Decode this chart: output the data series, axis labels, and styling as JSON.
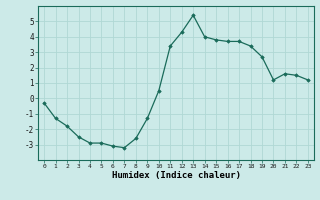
{
  "x": [
    0,
    1,
    2,
    3,
    4,
    5,
    6,
    7,
    8,
    9,
    10,
    11,
    12,
    13,
    14,
    15,
    16,
    17,
    18,
    19,
    20,
    21,
    22,
    23
  ],
  "y": [
    -0.3,
    -1.3,
    -1.8,
    -2.5,
    -2.9,
    -2.9,
    -3.1,
    -3.2,
    -2.6,
    -1.3,
    0.5,
    3.4,
    4.3,
    5.4,
    4.0,
    3.8,
    3.7,
    3.7,
    3.4,
    2.7,
    1.2,
    1.6,
    1.5,
    1.2
  ],
  "xlabel": "Humidex (Indice chaleur)",
  "line_color": "#1a6b5a",
  "marker": "D",
  "marker_size": 1.8,
  "bg_color": "#cceae8",
  "grid_color": "#b0d8d4",
  "ylim": [
    -4,
    6
  ],
  "xlim": [
    -0.5,
    23.5
  ],
  "yticks": [
    -3,
    -2,
    -1,
    0,
    1,
    2,
    3,
    4,
    5
  ],
  "xticks": [
    0,
    1,
    2,
    3,
    4,
    5,
    6,
    7,
    8,
    9,
    10,
    11,
    12,
    13,
    14,
    15,
    16,
    17,
    18,
    19,
    20,
    21,
    22,
    23
  ],
  "xlabel_fontsize": 6.5,
  "xlabel_fontweight": "bold",
  "ytick_fontsize": 5.5,
  "xtick_fontsize": 4.5
}
